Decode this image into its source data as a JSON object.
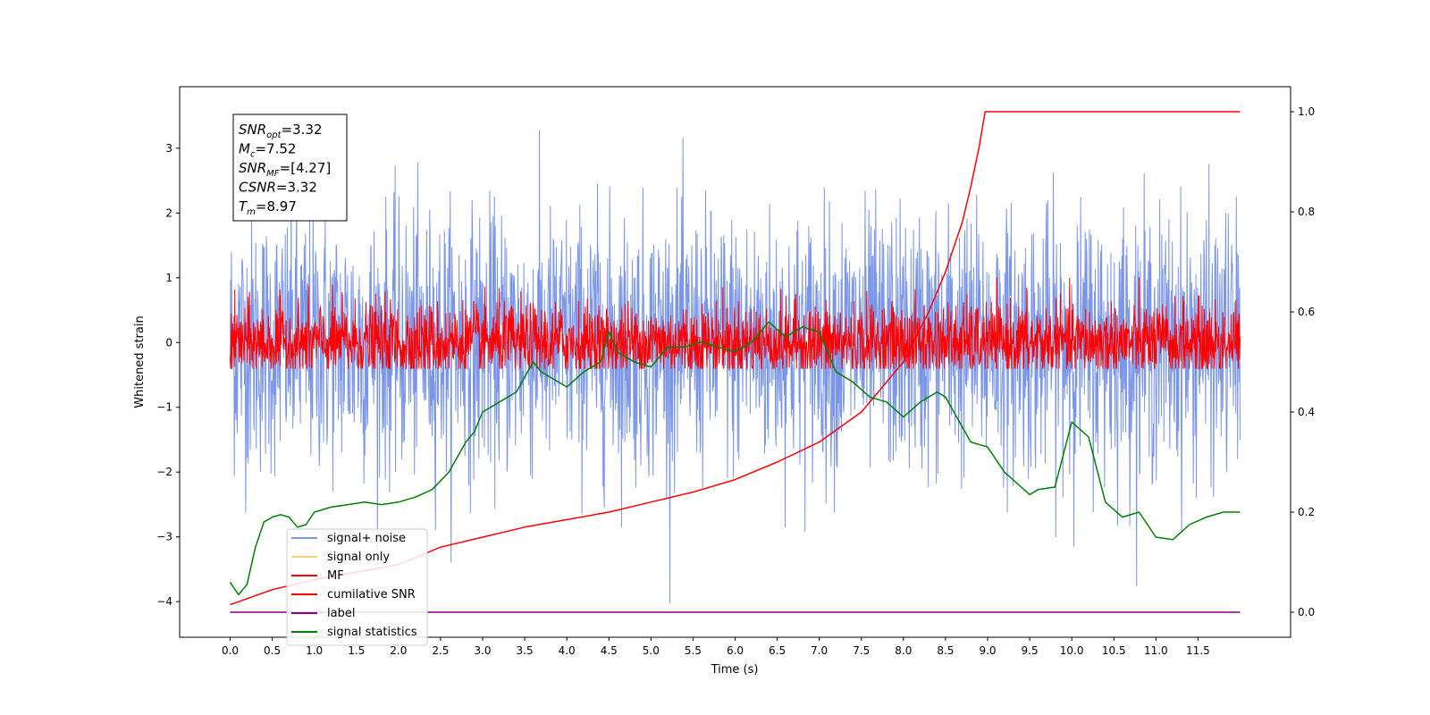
{
  "chart_data": {
    "type": "line",
    "xlabel": "Time (s)",
    "ylabel": "Whitened strain",
    "ylabel_right": "",
    "xlim": [
      -0.6,
      12.6
    ],
    "ylim": [
      -4.55,
      3.95
    ],
    "ylim_right": [
      -0.05,
      1.05
    ],
    "x_ticks": [
      "0.0",
      "0.5",
      "1.0",
      "1.5",
      "2.0",
      "2.5",
      "3.0",
      "3.5",
      "4.0",
      "4.5",
      "5.0",
      "5.5",
      "6.0",
      "6.5",
      "7.0",
      "7.5",
      "8.0",
      "8.5",
      "9.0",
      "9.5",
      "10.0",
      "10.5",
      "11.0",
      "11.5"
    ],
    "y_ticks": [
      "3",
      "2",
      "1",
      "0",
      "−1",
      "−2",
      "−3",
      "−4"
    ],
    "y_right_ticks": [
      "1.0",
      "0.8",
      "0.6",
      "0.4",
      "0.2",
      "0.0"
    ],
    "annotation": [
      {
        "base": "SNR",
        "sub": "opt",
        "value": "=3.32"
      },
      {
        "base": "M",
        "sub": "c",
        "value": "=7.52"
      },
      {
        "base": "SNR",
        "sub": "MF",
        "value": "=[4.27]"
      },
      {
        "base": "CSNR",
        "sub": "",
        "value": "=3.32"
      },
      {
        "base": "T",
        "sub": "m",
        "value": "=8.97"
      }
    ],
    "legend": {
      "placement": "lower-left",
      "entries": [
        {
          "label": "signal+ noise",
          "color": "#7b96e8"
        },
        {
          "label": "signal only",
          "color": "#f5cf7a"
        },
        {
          "label": "MF",
          "color": "#ff0000"
        },
        {
          "label": "cumilative SNR",
          "color": "#ff0000"
        },
        {
          "label": "label",
          "color": "#800080"
        },
        {
          "label": "signal statistics",
          "color": "#008000"
        }
      ]
    },
    "series": [
      {
        "name": "signal+ noise",
        "axis": "left",
        "color": "#7b96e8",
        "x_range": [
          0,
          12.0
        ],
        "noise_std": 1.0,
        "y_min": -4.15,
        "y_max": 3.55
      },
      {
        "name": "MF",
        "axis": "left",
        "color": "#ff0000",
        "x_range": [
          0,
          12.0
        ],
        "noise_std": 0.3,
        "y_min": -0.4,
        "y_max": 1.0
      },
      {
        "name": "cumilative SNR",
        "axis": "right",
        "color": "#ff0000",
        "x": [
          0,
          0.5,
          1.0,
          1.5,
          2.0,
          2.5,
          3.0,
          3.5,
          4.0,
          4.5,
          5.0,
          5.5,
          6.0,
          6.5,
          7.0,
          7.5,
          8.0,
          8.3,
          8.5,
          8.7,
          8.8,
          8.9,
          8.97,
          9.0,
          10.0,
          11.0,
          12.0
        ],
        "y": [
          0.015,
          0.045,
          0.065,
          0.08,
          0.095,
          0.13,
          0.15,
          0.17,
          0.185,
          0.2,
          0.22,
          0.24,
          0.265,
          0.3,
          0.34,
          0.4,
          0.5,
          0.6,
          0.68,
          0.78,
          0.85,
          0.93,
          1.0,
          1.0,
          1.0,
          1.0,
          1.0
        ]
      },
      {
        "name": "label",
        "axis": "right",
        "color": "#800080",
        "x": [
          0,
          12.0
        ],
        "y": [
          0,
          0
        ]
      },
      {
        "name": "signal statistics",
        "axis": "right",
        "color": "#008000",
        "x": [
          0.0,
          0.1,
          0.2,
          0.3,
          0.4,
          0.5,
          0.6,
          0.7,
          0.8,
          0.9,
          1.0,
          1.2,
          1.4,
          1.6,
          1.8,
          2.0,
          2.2,
          2.4,
          2.6,
          2.8,
          2.9,
          3.0,
          3.2,
          3.4,
          3.5,
          3.6,
          3.7,
          3.8,
          4.0,
          4.2,
          4.4,
          4.5,
          4.6,
          4.8,
          5.0,
          5.2,
          5.4,
          5.6,
          5.8,
          6.0,
          6.2,
          6.4,
          6.6,
          6.8,
          7.0,
          7.2,
          7.4,
          7.6,
          7.8,
          8.0,
          8.2,
          8.4,
          8.5,
          8.6,
          8.8,
          9.0,
          9.2,
          9.4,
          9.5,
          9.6,
          9.8,
          10.0,
          10.2,
          10.4,
          10.6,
          10.8,
          11.0,
          11.2,
          11.4,
          11.6,
          11.8,
          12.0
        ],
        "y": [
          0.06,
          0.035,
          0.055,
          0.13,
          0.18,
          0.19,
          0.195,
          0.19,
          0.17,
          0.175,
          0.2,
          0.21,
          0.215,
          0.22,
          0.215,
          0.22,
          0.23,
          0.245,
          0.28,
          0.34,
          0.36,
          0.4,
          0.42,
          0.44,
          0.47,
          0.5,
          0.48,
          0.47,
          0.45,
          0.48,
          0.5,
          0.56,
          0.52,
          0.5,
          0.49,
          0.53,
          0.53,
          0.54,
          0.53,
          0.52,
          0.54,
          0.58,
          0.55,
          0.57,
          0.56,
          0.48,
          0.46,
          0.43,
          0.42,
          0.39,
          0.42,
          0.44,
          0.43,
          0.4,
          0.34,
          0.33,
          0.28,
          0.25,
          0.235,
          0.245,
          0.25,
          0.38,
          0.35,
          0.22,
          0.19,
          0.2,
          0.15,
          0.145,
          0.175,
          0.19,
          0.2,
          0.2
        ]
      }
    ]
  }
}
